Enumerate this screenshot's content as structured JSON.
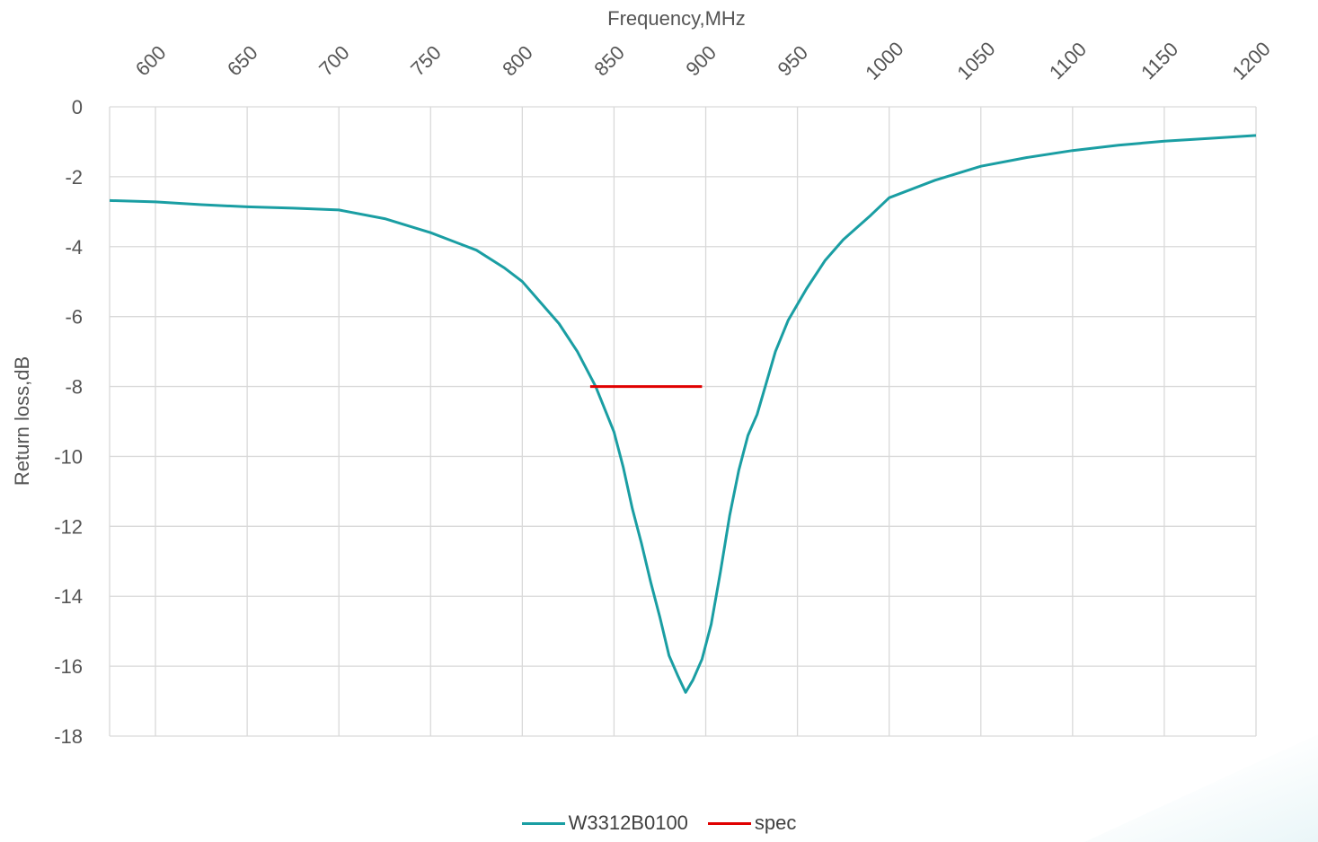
{
  "chart_data": {
    "type": "line",
    "x_axis": {
      "title": "Frequency,MHz",
      "position": "top",
      "min": 575,
      "max": 1200,
      "ticks": [
        600,
        650,
        700,
        750,
        800,
        850,
        900,
        950,
        1000,
        1050,
        1100,
        1150,
        1200
      ]
    },
    "y_axis": {
      "title": "Return loss,dB",
      "min": -18,
      "max": 0,
      "ticks": [
        0,
        -2,
        -4,
        -6,
        -8,
        -10,
        -12,
        -14,
        -16,
        -18
      ]
    },
    "grid": true,
    "legend_position": "bottom",
    "series": [
      {
        "name": "W3312B0100",
        "color": "#1a9ea3",
        "points": [
          [
            575,
            -2.68
          ],
          [
            600,
            -2.72
          ],
          [
            625,
            -2.8
          ],
          [
            650,
            -2.86
          ],
          [
            675,
            -2.9
          ],
          [
            700,
            -2.95
          ],
          [
            725,
            -3.2
          ],
          [
            750,
            -3.6
          ],
          [
            775,
            -4.1
          ],
          [
            790,
            -4.6
          ],
          [
            800,
            -5.0
          ],
          [
            810,
            -5.6
          ],
          [
            820,
            -6.2
          ],
          [
            830,
            -7.0
          ],
          [
            840,
            -8.0
          ],
          [
            850,
            -9.3
          ],
          [
            855,
            -10.3
          ],
          [
            860,
            -11.5
          ],
          [
            865,
            -12.5
          ],
          [
            870,
            -13.6
          ],
          [
            875,
            -14.6
          ],
          [
            880,
            -15.7
          ],
          [
            885,
            -16.3
          ],
          [
            889,
            -16.75
          ],
          [
            893,
            -16.4
          ],
          [
            898,
            -15.8
          ],
          [
            903,
            -14.8
          ],
          [
            908,
            -13.3
          ],
          [
            913,
            -11.7
          ],
          [
            918,
            -10.4
          ],
          [
            923,
            -9.4
          ],
          [
            928,
            -8.8
          ],
          [
            933,
            -7.9
          ],
          [
            938,
            -7.0
          ],
          [
            945,
            -6.1
          ],
          [
            955,
            -5.2
          ],
          [
            965,
            -4.4
          ],
          [
            975,
            -3.8
          ],
          [
            990,
            -3.1
          ],
          [
            1000,
            -2.6
          ],
          [
            1025,
            -2.1
          ],
          [
            1050,
            -1.7
          ],
          [
            1075,
            -1.45
          ],
          [
            1100,
            -1.25
          ],
          [
            1125,
            -1.1
          ],
          [
            1150,
            -0.98
          ],
          [
            1175,
            -0.9
          ],
          [
            1200,
            -0.82
          ]
        ]
      },
      {
        "name": "spec",
        "color": "#e00000",
        "points": [
          [
            837,
            -8
          ],
          [
            898,
            -8
          ]
        ]
      }
    ]
  }
}
